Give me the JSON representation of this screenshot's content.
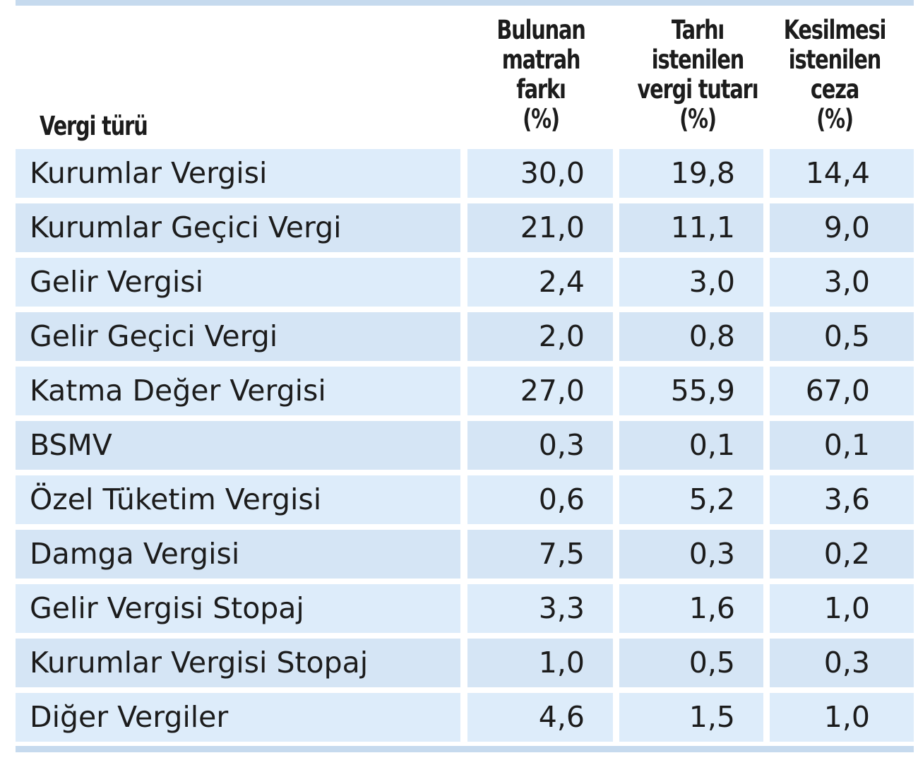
{
  "chart_data": {
    "type": "table",
    "columns": [
      "Vergi türü",
      "Bulunan matrah farkı (%)",
      "Tarhı istenilen vergi tutarı (%)",
      "Kesilmesi istenilen ceza (%)"
    ],
    "header": {
      "label": "Vergi türü",
      "col1": [
        "Bulunan",
        "matrah",
        "farkı",
        "(%)"
      ],
      "col2": [
        "Tarhı",
        "istenilen",
        "vergi tutarı",
        "(%)"
      ],
      "col3": [
        "Kesilmesi",
        "istenilen",
        "ceza",
        "(%)"
      ]
    },
    "rows": [
      {
        "name": "Kurumlar Vergisi",
        "matrah": "30,0",
        "vergi": "19,8",
        "ceza": "14,4"
      },
      {
        "name": "Kurumlar Geçici Vergi",
        "matrah": "21,0",
        "vergi": "11,1",
        "ceza": "9,0"
      },
      {
        "name": "Gelir Vergisi",
        "matrah": "2,4",
        "vergi": "3,0",
        "ceza": "3,0"
      },
      {
        "name": "Gelir Geçici Vergi",
        "matrah": "2,0",
        "vergi": "0,8",
        "ceza": "0,5"
      },
      {
        "name": "Katma Değer Vergisi",
        "matrah": "27,0",
        "vergi": "55,9",
        "ceza": "67,0"
      },
      {
        "name": "BSMV",
        "matrah": "0,3",
        "vergi": "0,1",
        "ceza": "0,1"
      },
      {
        "name": "Özel Tüketim Vergisi",
        "matrah": "0,6",
        "vergi": "5,2",
        "ceza": "3,6"
      },
      {
        "name": "Damga Vergisi",
        "matrah": "7,5",
        "vergi": "0,3",
        "ceza": "0,2"
      },
      {
        "name": "Gelir Vergisi Stopaj",
        "matrah": "3,3",
        "vergi": "1,6",
        "ceza": "1,0"
      },
      {
        "name": "Kurumlar Vergisi Stopaj",
        "matrah": "1,0",
        "vergi": "0,5",
        "ceza": "0,3"
      },
      {
        "name": "Diğer Vergiler",
        "matrah": "4,6",
        "vergi": "1,5",
        "ceza": "1,0"
      }
    ]
  },
  "colors": {
    "cell_fill": "#ddecfa",
    "rule": "#c6daee",
    "text": "#1c1c1c"
  }
}
